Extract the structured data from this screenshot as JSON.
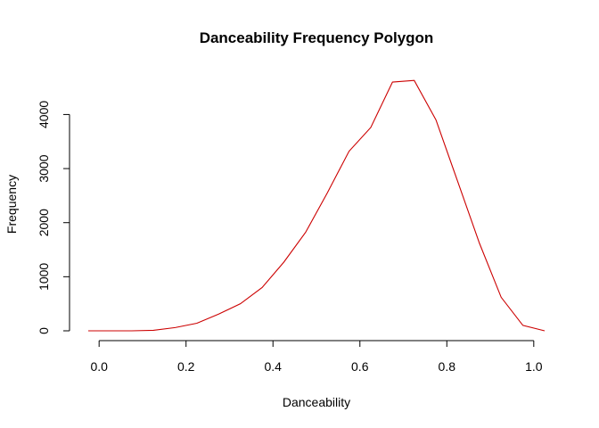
{
  "chart_data": {
    "type": "line",
    "title": "Danceability Frequency Polygon",
    "xlabel": "Danceability",
    "ylabel": "Frequency",
    "xlim": [
      -0.025,
      1.025
    ],
    "ylim": [
      0,
      4650
    ],
    "x_ticks": [
      "0.0",
      "0.2",
      "0.4",
      "0.6",
      "0.8",
      "1.0"
    ],
    "y_ticks": [
      "0",
      "1000",
      "2000",
      "3000",
      "4000"
    ],
    "grid": false,
    "line_color": "#cc0000",
    "series": [
      {
        "x": [
          -0.025,
          0.025,
          0.075,
          0.125,
          0.175,
          0.225,
          0.275,
          0.325,
          0.375,
          0.425,
          0.475,
          0.525,
          0.575,
          0.625,
          0.675,
          0.725,
          0.775,
          0.825,
          0.875,
          0.925,
          0.975,
          1.025
        ],
        "y": [
          0,
          0,
          0,
          10,
          60,
          140,
          310,
          500,
          800,
          1270,
          1820,
          2550,
          3320,
          3760,
          4600,
          4630,
          3900,
          2760,
          1620,
          620,
          100,
          0
        ]
      }
    ]
  }
}
